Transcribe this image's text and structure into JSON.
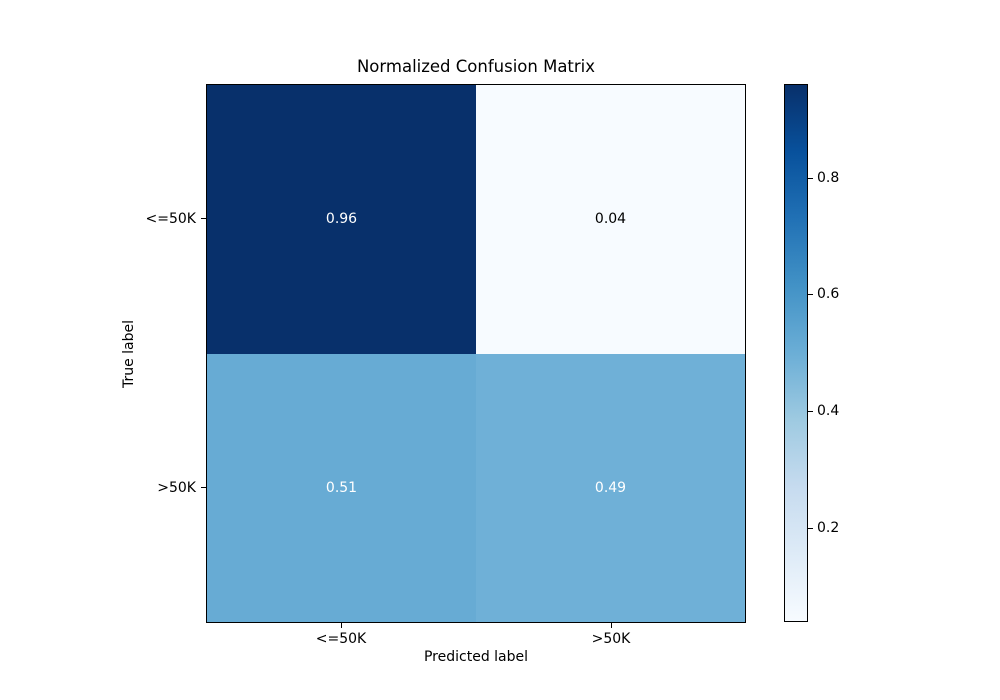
{
  "chart_data": {
    "type": "heatmap",
    "title": "Normalized Confusion Matrix",
    "xlabel": "Predicted label",
    "ylabel": "True label",
    "x_tick_labels": [
      "<=50K",
      ">50K"
    ],
    "y_tick_labels": [
      "<=50K",
      ">50K"
    ],
    "rows": [
      {
        "true_label": "<=50K",
        "values": [
          0.96,
          0.04
        ],
        "labels": [
          "0.96",
          "0.04"
        ]
      },
      {
        "true_label": ">50K",
        "values": [
          0.51,
          0.49
        ],
        "labels": [
          "0.51",
          "0.49"
        ]
      }
    ],
    "cell_colors": [
      [
        "#08306b",
        "#f7fbff"
      ],
      [
        "#67abd4",
        "#6fb0d7"
      ]
    ],
    "cell_text_colors": [
      [
        "#ffffff",
        "#000000"
      ],
      [
        "#ffffff",
        "#ffffff"
      ]
    ],
    "colorbar": {
      "ticks": [
        "0.8",
        "0.6",
        "0.4",
        "0.2"
      ],
      "vmin": 0.04,
      "vmax": 0.96,
      "colormap": "Blues",
      "gradient_stops": [
        "#f7fbff",
        "#deebf7",
        "#c6dbef",
        "#9ecae1",
        "#6baed6",
        "#4292c6",
        "#2171b5",
        "#08519c",
        "#08306b"
      ]
    },
    "grid": false,
    "legend_position": "right-colorbar",
    "background_color": "#ffffff",
    "axes_edge_color": "#000000"
  }
}
